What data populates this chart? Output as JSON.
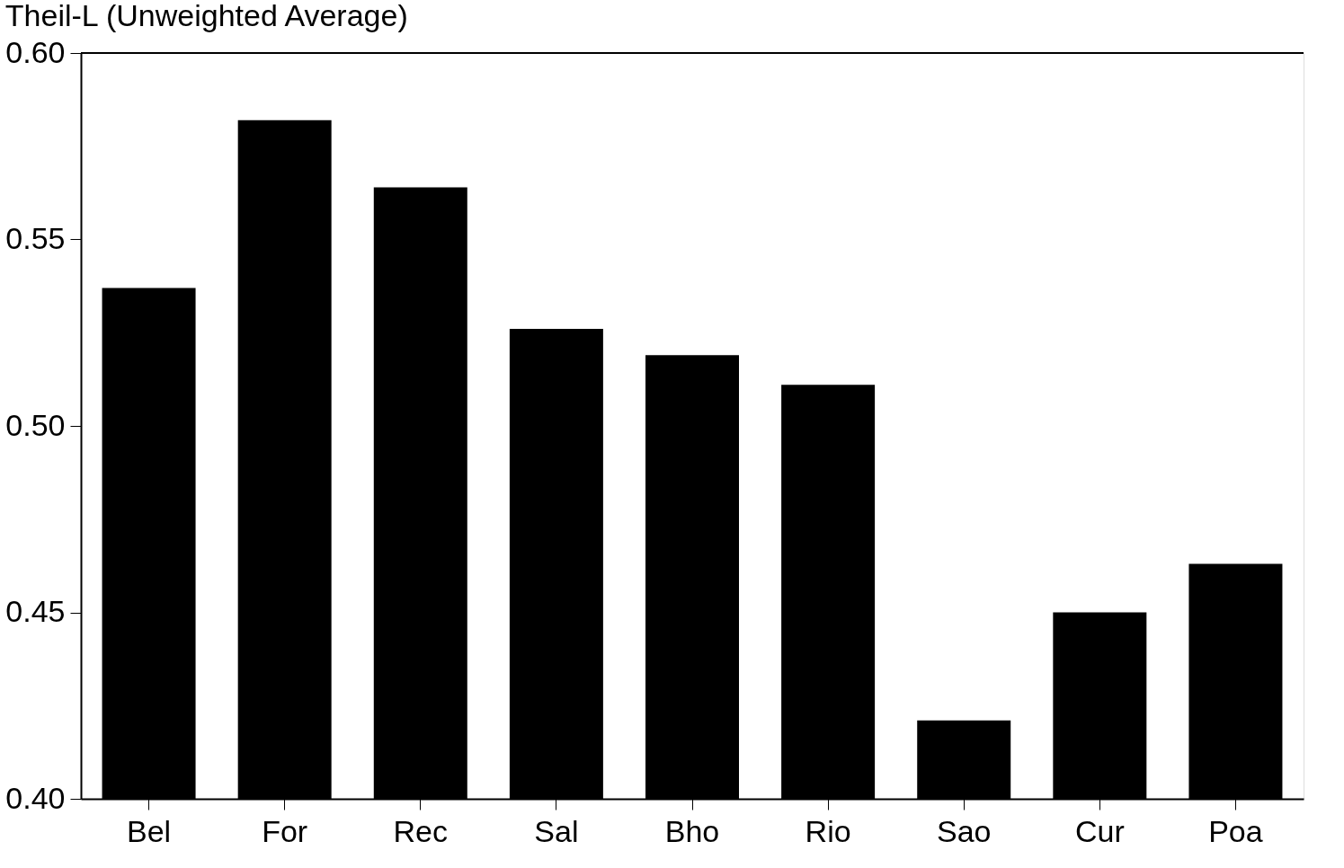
{
  "chart_data": {
    "type": "bar",
    "title": "Theil-L (Unweighted Average)",
    "categories": [
      "Bel",
      "For",
      "Rec",
      "Sal",
      "Bho",
      "Rio",
      "Sao",
      "Cur",
      "Poa"
    ],
    "values": [
      0.537,
      0.582,
      0.564,
      0.526,
      0.519,
      0.511,
      0.421,
      0.45,
      0.463
    ],
    "color": "#000000",
    "ylim": [
      0.4,
      0.6
    ],
    "yticks": [
      {
        "value": 0.4,
        "label": "0.40"
      },
      {
        "value": 0.45,
        "label": "0.45"
      },
      {
        "value": 0.5,
        "label": "0.50"
      },
      {
        "value": 0.55,
        "label": "0.55"
      },
      {
        "value": 0.6,
        "label": "0.60"
      }
    ],
    "grid": false
  }
}
